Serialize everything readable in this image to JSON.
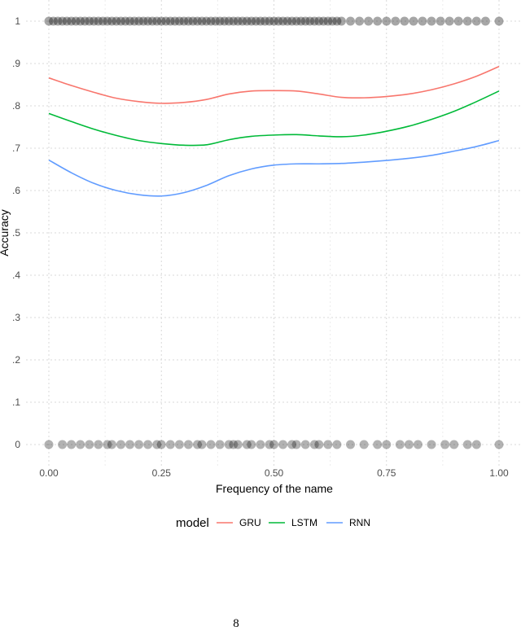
{
  "chart_data": {
    "type": "line",
    "xlabel": "Frequency of the name",
    "ylabel": "Accuracy",
    "xlim": [
      -0.05,
      1.05
    ],
    "ylim": [
      -0.05,
      1.05
    ],
    "x_ticks": [
      0.0,
      0.25,
      0.5,
      0.75,
      1.0
    ],
    "x_tick_labels": [
      "0.00",
      "0.25",
      "0.50",
      "0.75",
      "1.00"
    ],
    "y_ticks": [
      0,
      0.1,
      0.2,
      0.3,
      0.4,
      0.5,
      0.6,
      0.7,
      0.8,
      0.9,
      1.0
    ],
    "y_tick_labels": [
      "0",
      ".1",
      ".2",
      ".3",
      ".4",
      ".5",
      ".6",
      ".7",
      ".8",
      ".9",
      "1"
    ],
    "grid": true,
    "legend": {
      "title": "model",
      "position": "bottom"
    },
    "series": [
      {
        "name": "GRU",
        "color": "#F8766D",
        "x": [
          0.0,
          0.05,
          0.1,
          0.15,
          0.2,
          0.25,
          0.3,
          0.35,
          0.4,
          0.45,
          0.5,
          0.55,
          0.6,
          0.65,
          0.7,
          0.75,
          0.8,
          0.85,
          0.9,
          0.95,
          1.0
        ],
        "y": [
          0.866,
          0.848,
          0.832,
          0.818,
          0.81,
          0.806,
          0.808,
          0.815,
          0.828,
          0.835,
          0.836,
          0.835,
          0.828,
          0.82,
          0.819,
          0.822,
          0.828,
          0.838,
          0.852,
          0.87,
          0.893
        ]
      },
      {
        "name": "LSTM",
        "color": "#00BA38",
        "x": [
          0.0,
          0.05,
          0.1,
          0.15,
          0.2,
          0.25,
          0.3,
          0.35,
          0.4,
          0.45,
          0.5,
          0.55,
          0.6,
          0.65,
          0.7,
          0.75,
          0.8,
          0.85,
          0.9,
          0.95,
          1.0
        ],
        "y": [
          0.782,
          0.763,
          0.745,
          0.73,
          0.718,
          0.711,
          0.707,
          0.708,
          0.72,
          0.728,
          0.731,
          0.732,
          0.729,
          0.727,
          0.731,
          0.74,
          0.752,
          0.768,
          0.787,
          0.81,
          0.835
        ]
      },
      {
        "name": "RNN",
        "color": "#619CFF",
        "x": [
          0.0,
          0.05,
          0.1,
          0.15,
          0.2,
          0.25,
          0.3,
          0.35,
          0.4,
          0.45,
          0.5,
          0.55,
          0.6,
          0.65,
          0.7,
          0.75,
          0.8,
          0.85,
          0.9,
          0.95,
          1.0
        ],
        "y": [
          0.672,
          0.642,
          0.617,
          0.6,
          0.59,
          0.587,
          0.595,
          0.612,
          0.635,
          0.651,
          0.66,
          0.663,
          0.663,
          0.664,
          0.667,
          0.671,
          0.676,
          0.683,
          0.693,
          0.704,
          0.718
        ]
      }
    ],
    "points": {
      "color": "#000000",
      "y1_x": [
        0.0,
        0.01,
        0.02,
        0.03,
        0.04,
        0.05,
        0.06,
        0.07,
        0.08,
        0.09,
        0.1,
        0.11,
        0.12,
        0.13,
        0.14,
        0.15,
        0.16,
        0.17,
        0.18,
        0.19,
        0.2,
        0.21,
        0.22,
        0.23,
        0.24,
        0.25,
        0.26,
        0.27,
        0.28,
        0.29,
        0.3,
        0.31,
        0.32,
        0.33,
        0.34,
        0.35,
        0.36,
        0.37,
        0.38,
        0.39,
        0.4,
        0.41,
        0.42,
        0.43,
        0.44,
        0.45,
        0.46,
        0.47,
        0.48,
        0.49,
        0.5,
        0.51,
        0.52,
        0.53,
        0.54,
        0.55,
        0.56,
        0.57,
        0.58,
        0.59,
        0.6,
        0.61,
        0.62,
        0.63,
        0.64,
        0.65,
        0.67,
        0.69,
        0.71,
        0.73,
        0.75,
        0.77,
        0.79,
        0.81,
        0.83,
        0.85,
        0.87,
        0.89,
        0.91,
        0.93,
        0.95,
        0.97,
        1.0
      ],
      "y0_x": [
        0.0,
        0.03,
        0.05,
        0.07,
        0.09,
        0.11,
        0.13,
        0.14,
        0.16,
        0.18,
        0.2,
        0.22,
        0.24,
        0.25,
        0.27,
        0.29,
        0.31,
        0.33,
        0.34,
        0.36,
        0.38,
        0.4,
        0.41,
        0.42,
        0.44,
        0.45,
        0.47,
        0.49,
        0.5,
        0.52,
        0.54,
        0.55,
        0.57,
        0.59,
        0.6,
        0.62,
        0.64,
        0.67,
        0.7,
        0.73,
        0.75,
        0.78,
        0.8,
        0.82,
        0.85,
        0.88,
        0.9,
        0.93,
        0.95,
        1.0
      ]
    }
  },
  "page": {
    "number": "8"
  }
}
